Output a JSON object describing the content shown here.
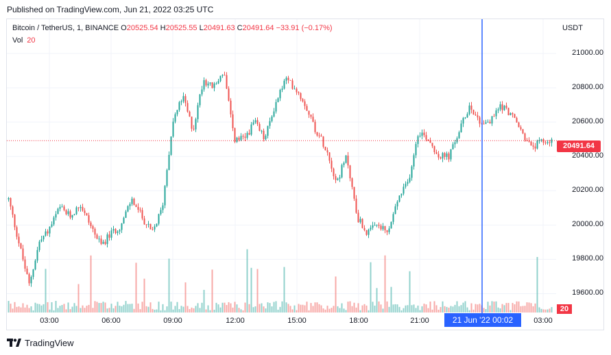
{
  "published": "Published on TradingView.com, Jun 21, 2022 03:25 UTC",
  "legend": {
    "symbol": "Bitcoin / TetherUS, 1, BINANCE",
    "o_key": "O",
    "o_val": "20525.54",
    "h_key": "H",
    "h_val": "20525.55",
    "l_key": "L",
    "l_val": "20491.63",
    "c_key": "C",
    "c_val": "20491.64",
    "change": "−33.91 (−0.17%)",
    "vol_label": "Vol",
    "vol_val": "20"
  },
  "currency": "USDT",
  "current_price_label": "20491.64",
  "volume_badge": "20",
  "crosshair_time": "21 Jun '22   00:02",
  "logo_text": "TradingView",
  "colors": {
    "up": "#26a69a",
    "down": "#ef5350",
    "crosshair": "#2962ff",
    "price_line": "#f23645"
  },
  "chart_data": {
    "type": "candlestick",
    "title": "Bitcoin / TetherUS, 1, BINANCE",
    "ylabel": "USDT",
    "y_ticks": [
      "21000.00",
      "20800.00",
      "20600.00",
      "20400.00",
      "20200.00",
      "20000.00",
      "19800.00",
      "19600.00"
    ],
    "x_ticks": [
      "03:00",
      "06:00",
      "09:00",
      "12:00",
      "15:00",
      "18:00",
      "21:00",
      "03:00"
    ],
    "ylim": [
      19490,
      21200
    ],
    "current_price": 20491.64,
    "crosshair_x_label": "21 Jun '22 00:02",
    "price_path": [
      [
        "01:00",
        20150
      ],
      [
        "01:30",
        19900
      ],
      [
        "02:00",
        19650
      ],
      [
        "02:30",
        19900
      ],
      [
        "03:00",
        19980
      ],
      [
        "03:30",
        20100
      ],
      [
        "04:00",
        20050
      ],
      [
        "04:30",
        20120
      ],
      [
        "05:00",
        20000
      ],
      [
        "05:30",
        19880
      ],
      [
        "06:00",
        19950
      ],
      [
        "06:30",
        20000
      ],
      [
        "07:00",
        20150
      ],
      [
        "07:30",
        20050
      ],
      [
        "08:00",
        19950
      ],
      [
        "08:30",
        20100
      ],
      [
        "09:00",
        20600
      ],
      [
        "09:30",
        20750
      ],
      [
        "10:00",
        20550
      ],
      [
        "10:30",
        20850
      ],
      [
        "11:00",
        20800
      ],
      [
        "11:30",
        20900
      ],
      [
        "12:00",
        20500
      ],
      [
        "12:30",
        20500
      ],
      [
        "13:00",
        20600
      ],
      [
        "13:30",
        20500
      ],
      [
        "14:00",
        20700
      ],
      [
        "14:30",
        20850
      ],
      [
        "15:00",
        20800
      ],
      [
        "15:30",
        20700
      ],
      [
        "16:00",
        20550
      ],
      [
        "16:30",
        20450
      ],
      [
        "17:00",
        20250
      ],
      [
        "17:30",
        20400
      ],
      [
        "18:00",
        20050
      ],
      [
        "18:30",
        19950
      ],
      [
        "19:00",
        20000
      ],
      [
        "19:30",
        19950
      ],
      [
        "20:00",
        20150
      ],
      [
        "20:30",
        20250
      ],
      [
        "21:00",
        20550
      ],
      [
        "21:30",
        20500
      ],
      [
        "22:00",
        20400
      ],
      [
        "22:30",
        20400
      ],
      [
        "23:00",
        20550
      ],
      [
        "23:30",
        20700
      ],
      [
        "00:00",
        20600
      ],
      [
        "00:30",
        20600
      ],
      [
        "01:00",
        20700
      ],
      [
        "01:30",
        20650
      ],
      [
        "02:00",
        20550
      ],
      [
        "02:30",
        20450
      ],
      [
        "03:00",
        20480
      ],
      [
        "03:25",
        20491.64
      ]
    ]
  }
}
